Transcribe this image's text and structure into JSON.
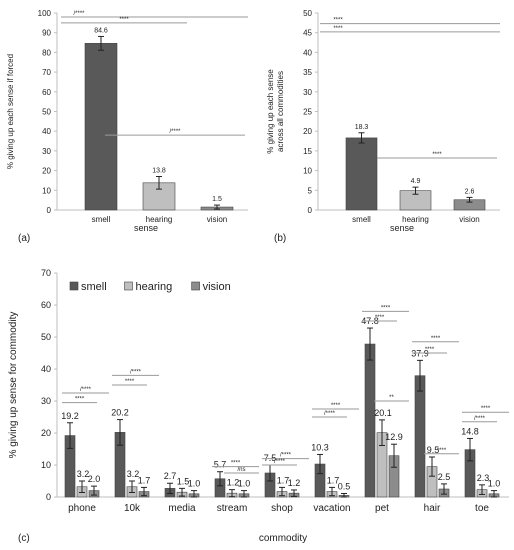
{
  "chart_data": [
    {
      "type": "bar",
      "panel_label": "(a)",
      "ylabel": "% giving up each sense if forced",
      "xlabel": "sense",
      "categories": [
        "smell",
        "hearing",
        "vision"
      ],
      "values": [
        84.6,
        13.8,
        1.5
      ],
      "value_labels": [
        "84.6",
        "13.8",
        "1.5"
      ],
      "errors": [
        3.5,
        3.2,
        1.0
      ],
      "colors": [
        "#595959",
        "#bfbfbf",
        "#8c8c8c"
      ],
      "ylim": [
        0,
        100
      ],
      "yticks": [
        0,
        10,
        20,
        30,
        40,
        50,
        60,
        70,
        80,
        90,
        100
      ],
      "ytick_labels": [
        "0",
        "10",
        "20",
        "30",
        "40",
        "50",
        "60",
        "70",
        "80",
        "90",
        "100"
      ],
      "significance": [
        {
          "from": 0,
          "to": 2,
          "label": "/****",
          "y": 98
        },
        {
          "from": 0,
          "to": 1,
          "label": "****",
          "y": 95
        },
        {
          "from": 1,
          "to": 2,
          "label": "/****",
          "y": 38
        }
      ]
    },
    {
      "type": "bar",
      "panel_label": "(b)",
      "ylabel": "% giving up each sense across all commodities",
      "xlabel": "sense",
      "categories": [
        "smell",
        "hearing",
        "vision"
      ],
      "values": [
        18.3,
        4.9,
        2.6
      ],
      "value_labels": [
        "18.3",
        "4.9",
        "2.6"
      ],
      "errors": [
        1.3,
        0.9,
        0.6
      ],
      "colors": [
        "#595959",
        "#bfbfbf",
        "#8c8c8c"
      ],
      "ylim": [
        0,
        50
      ],
      "yticks": [
        0,
        5,
        10,
        15,
        20,
        25,
        30,
        35,
        40,
        45,
        50
      ],
      "ytick_labels": [
        "0",
        "5",
        "10",
        "15",
        "20",
        "25",
        "30",
        "35",
        "40",
        "45",
        "50"
      ],
      "significance": [
        {
          "from": 0,
          "to": 2,
          "label": "****",
          "y": 47.3
        },
        {
          "from": 0,
          "to": 2,
          "label": "****",
          "y": 45.2
        },
        {
          "from": 1,
          "to": 2,
          "label": "****",
          "y": 13.2
        }
      ]
    },
    {
      "type": "bar",
      "panel_label": "(c)",
      "ylabel": "% giving up sense for commodity",
      "xlabel": "commodity",
      "categories": [
        "phone",
        "10k",
        "media",
        "stream",
        "shop",
        "vacation",
        "pet",
        "hair",
        "toe"
      ],
      "series": [
        {
          "name": "smell",
          "color": "#595959",
          "values": [
            19.2,
            20.2,
            2.7,
            5.7,
            7.5,
            10.3,
            47.8,
            37.9,
            14.8
          ],
          "value_labels": [
            "19.2",
            "20.2",
            "2.7",
            "5.7",
            "7.5",
            "10.3",
            "47.8",
            "37.9",
            "14.8"
          ],
          "errors": [
            4.0,
            4.0,
            1.6,
            2.2,
            2.5,
            3.0,
            5.0,
            4.8,
            3.5
          ]
        },
        {
          "name": "hearing",
          "color": "#bfbfbf",
          "values": [
            3.2,
            3.2,
            1.5,
            1.2,
            1.7,
            1.7,
            20.1,
            9.5,
            2.3
          ],
          "value_labels": [
            "3.2",
            "3.2",
            "1.5",
            "1.2",
            "1.7",
            "1.7",
            "20.1",
            "9.5",
            "2.3"
          ],
          "errors": [
            1.8,
            1.8,
            1.2,
            1.1,
            1.3,
            1.3,
            4.0,
            3.0,
            1.5
          ]
        },
        {
          "name": "vision",
          "color": "#8c8c8c",
          "values": [
            2.0,
            1.7,
            1.0,
            1.0,
            1.2,
            0.5,
            12.9,
            2.5,
            1.0
          ],
          "value_labels": [
            "2.0",
            "1.7",
            "1.0",
            "1.0",
            "1.2",
            "0.5",
            "12.9",
            "2.5",
            "1.0"
          ],
          "errors": [
            1.4,
            1.3,
            1.0,
            1.0,
            1.0,
            0.6,
            3.6,
            1.6,
            1.0
          ]
        }
      ],
      "ylim": [
        0,
        70
      ],
      "yticks": [
        0,
        10,
        20,
        30,
        40,
        50,
        60,
        70
      ],
      "ytick_labels": [
        "0",
        "10",
        "20",
        "30",
        "40",
        "50",
        "60",
        "70"
      ],
      "legend": "top-left",
      "significance": [
        {
          "category": 0,
          "from": 0,
          "to": 2,
          "label": "/****",
          "y": 32.5
        },
        {
          "category": 0,
          "from": 0,
          "to": 1,
          "label": "****",
          "y": 29.5
        },
        {
          "category": 1,
          "from": 0,
          "to": 2,
          "label": "/****",
          "y": 38.0
        },
        {
          "category": 1,
          "from": 0,
          "to": 1,
          "label": "****",
          "y": 35.0
        },
        {
          "category": 3,
          "from": 0,
          "to": 2,
          "label": "****",
          "y": 9.5
        },
        {
          "category": 3,
          "from": 1,
          "to": 2,
          "label": "/ns",
          "y": 7.5
        },
        {
          "category": 4,
          "from": 0,
          "to": 2,
          "label": "/****",
          "y": 12.0
        },
        {
          "category": 4,
          "from": 0,
          "to": 1,
          "label": "/****",
          "y": 10.0
        },
        {
          "category": 5,
          "from": 0,
          "to": 2,
          "label": "****",
          "y": 27.5
        },
        {
          "category": 5,
          "from": 0,
          "to": 1,
          "label": "/****",
          "y": 25.0
        },
        {
          "category": 6,
          "from": 0,
          "to": 2,
          "label": "****",
          "y": 58.0
        },
        {
          "category": 6,
          "from": 0,
          "to": 1,
          "label": "****",
          "y": 55.0
        },
        {
          "category": 6,
          "from": 1,
          "to": 2,
          "label": "**",
          "y": 30.0
        },
        {
          "category": 7,
          "from": 0,
          "to": 2,
          "label": "****",
          "y": 48.5
        },
        {
          "category": 7,
          "from": 0,
          "to": 1,
          "label": "****",
          "y": 45.0
        },
        {
          "category": 7,
          "from": 1,
          "to": 2,
          "label": "****",
          "y": 13.5
        },
        {
          "category": 8,
          "from": 0,
          "to": 2,
          "label": "****",
          "y": 26.5
        },
        {
          "category": 8,
          "from": 0,
          "to": 1,
          "label": "/****",
          "y": 23.5
        }
      ]
    }
  ]
}
